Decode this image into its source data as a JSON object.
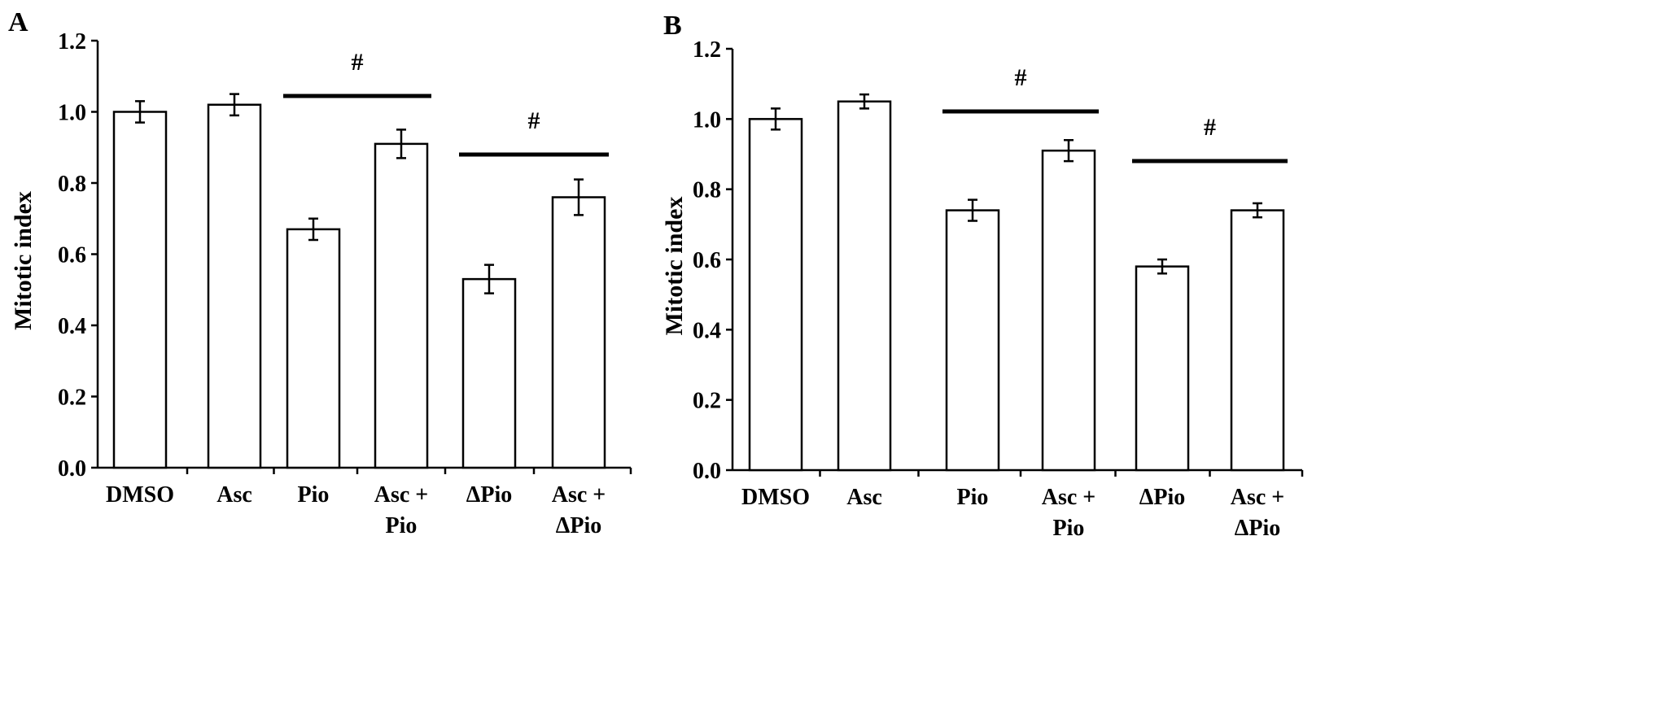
{
  "chart_data": [
    {
      "panel_label": "A",
      "type": "bar",
      "ylabel": "Mitotic index",
      "ylim": [
        0,
        1.2
      ],
      "yticks": [
        "0.0",
        "0.2",
        "0.4",
        "0.6",
        "0.8",
        "1.0",
        "1.2"
      ],
      "categories": [
        [
          "DMSO"
        ],
        [
          "Asc"
        ],
        [
          "Pio"
        ],
        [
          "Asc +",
          "Pio"
        ],
        [
          "ΔPio"
        ],
        [
          "Asc +",
          "ΔPio"
        ]
      ],
      "values": [
        1.0,
        1.02,
        0.67,
        0.91,
        0.53,
        0.76
      ],
      "errors": [
        0.03,
        0.03,
        0.03,
        0.04,
        0.04,
        0.05
      ],
      "bar_fill": "#ffffff",
      "stroke": "#000000",
      "significance": [
        {
          "symbol": "#",
          "from": 2,
          "to": 3
        },
        {
          "symbol": "#",
          "from": 4,
          "to": 5
        }
      ]
    },
    {
      "panel_label": "B",
      "type": "bar",
      "ylabel": "Mitotic index",
      "ylim": [
        0,
        1.2
      ],
      "yticks": [
        "0.0",
        "0.2",
        "0.4",
        "0.6",
        "0.8",
        "1.0",
        "1.2"
      ],
      "categories": [
        [
          "DMSO"
        ],
        [
          "Asc"
        ],
        [
          "Pio"
        ],
        [
          "Asc +",
          "Pio"
        ],
        [
          "ΔPio"
        ],
        [
          "Asc +",
          "ΔPio"
        ]
      ],
      "values": [
        1.0,
        1.05,
        0.74,
        0.91,
        0.58,
        0.74
      ],
      "errors": [
        0.03,
        0.02,
        0.03,
        0.03,
        0.02,
        0.02
      ],
      "bar_fill": "#ffffff",
      "stroke": "#000000",
      "significance": [
        {
          "symbol": "#",
          "from": 2,
          "to": 3
        },
        {
          "symbol": "#",
          "from": 4,
          "to": 5
        }
      ]
    }
  ]
}
